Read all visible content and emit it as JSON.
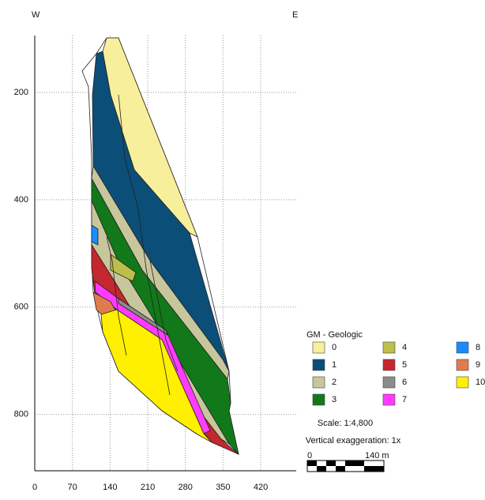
{
  "chart_data": {
    "type": "section",
    "west_label": "W",
    "east_label": "E",
    "xlim": [
      0,
      486
    ],
    "ylim": [
      94,
      905
    ],
    "xticks": [
      0,
      70,
      140,
      210,
      280,
      350,
      420
    ],
    "yticks": [
      200,
      400,
      600,
      800
    ],
    "grid": true,
    "legend": {
      "title": "GM - Geologic",
      "entries": [
        {
          "name": "0",
          "color": "#f7ef9c"
        },
        {
          "name": "1",
          "color": "#0b4f78"
        },
        {
          "name": "2",
          "color": "#c8c69c"
        },
        {
          "name": "3",
          "color": "#12791a"
        },
        {
          "name": "4",
          "color": "#bcc04a"
        },
        {
          "name": "5",
          "color": "#c4272d"
        },
        {
          "name": "6",
          "color": "#8c8c8c"
        },
        {
          "name": "7",
          "color": "#ff3cff"
        },
        {
          "name": "8",
          "color": "#1a8cff"
        },
        {
          "name": "9",
          "color": "#e07c4c"
        },
        {
          "name": "10",
          "color": "#fff000"
        }
      ]
    },
    "scale_text": "Scale: 1:4,800",
    "exaggeration_text": "Vertical exaggeration: 1x",
    "scale_bar": {
      "start": 0,
      "end_label": "140 m"
    }
  }
}
